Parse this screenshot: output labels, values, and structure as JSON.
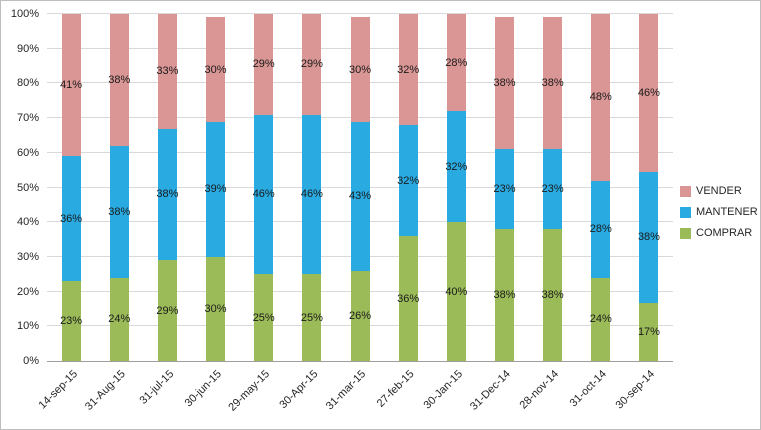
{
  "chart_data": {
    "type": "bar",
    "stacked": true,
    "title": "",
    "xlabel": "",
    "ylabel": "",
    "ylim": [
      0,
      100
    ],
    "grid": true,
    "legend_position": "right",
    "y_ticks": [
      "0%",
      "10%",
      "20%",
      "30%",
      "40%",
      "50%",
      "60%",
      "70%",
      "80%",
      "90%",
      "100%"
    ],
    "categories": [
      "14-sep-15",
      "31-Aug-15",
      "31-jul-15",
      "30-jun-15",
      "29-may-15",
      "30-Apr-15",
      "31-mar-15",
      "27-feb-15",
      "30-Jan-15",
      "31-Dec-14",
      "28-nov-14",
      "31-oct-14",
      "30-sep-14"
    ],
    "series": [
      {
        "name": "COMPRAR",
        "color": "#9BBB59",
        "values": [
          23,
          24,
          29,
          30,
          25,
          25,
          26,
          36,
          40,
          38,
          38,
          24,
          17
        ]
      },
      {
        "name": "MANTENER",
        "color": "#29ABE2",
        "values": [
          36,
          38,
          38,
          39,
          46,
          46,
          43,
          32,
          32,
          23,
          23,
          28,
          38
        ]
      },
      {
        "name": "VENDER",
        "color": "#D99694",
        "values": [
          41,
          38,
          33,
          30,
          29,
          29,
          30,
          32,
          28,
          38,
          38,
          48,
          46
        ]
      }
    ],
    "legend": [
      {
        "label": "VENDER",
        "color": "#D99694"
      },
      {
        "label": "MANTENER",
        "color": "#29ABE2"
      },
      {
        "label": "COMPRAR",
        "color": "#9BBB59"
      }
    ]
  }
}
